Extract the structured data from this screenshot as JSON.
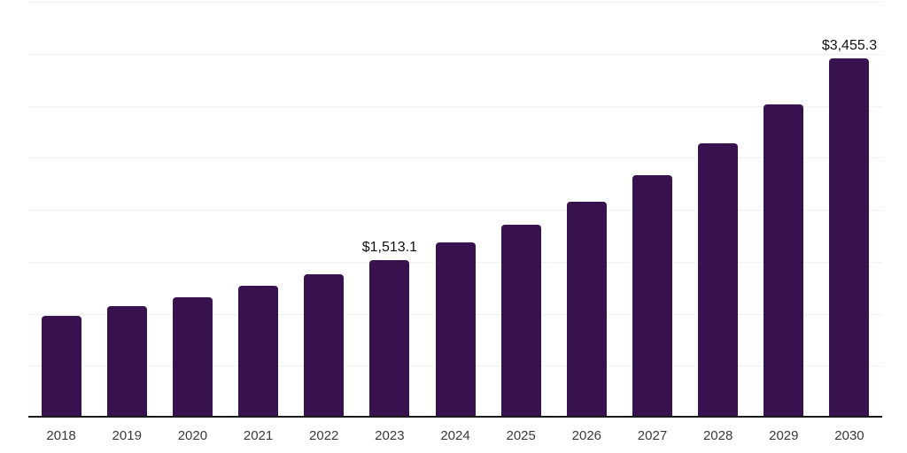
{
  "chart_data": {
    "type": "bar",
    "title": "",
    "xlabel": "",
    "ylabel": "",
    "categories": [
      "2018",
      "2019",
      "2020",
      "2021",
      "2022",
      "2023",
      "2024",
      "2025",
      "2026",
      "2027",
      "2028",
      "2029",
      "2030"
    ],
    "values": [
      975,
      1070,
      1160,
      1267,
      1381,
      1513.1,
      1688,
      1858,
      2074,
      2330,
      2640,
      3010,
      3455.3
    ],
    "data_labels": [
      "",
      "",
      "",
      "",
      "",
      "$1,513.1",
      "",
      "",
      "",
      "",
      "",
      "",
      "$3,455.3"
    ],
    "ylim": [
      0,
      4000
    ],
    "gridline_step": 500,
    "grid": "horizontal-only",
    "legend_position": "none",
    "bar_color": "#37124E",
    "axis_color": "#1a1a1a",
    "gridline_color": "#f1f1f4",
    "tick_label_color": "#3a3a3a",
    "value_label_color": "#111111"
  }
}
